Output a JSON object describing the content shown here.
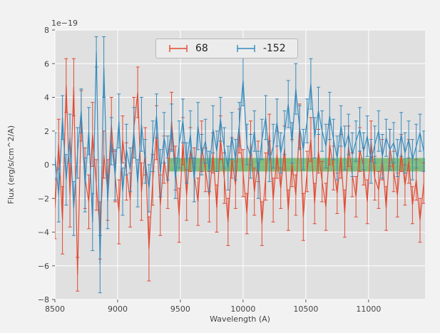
{
  "figure": {
    "offset_text": "1e−19",
    "background": "#f2f2f2",
    "axes_background": "#e0e0e0",
    "grid_color": "#ffffff",
    "tick_color": "#555555"
  },
  "legend": {
    "entries": [
      {
        "label": "68",
        "color": "#E24A33"
      },
      {
        "label": "-152",
        "color": "#348ABD"
      }
    ]
  },
  "chart_data": {
    "type": "line",
    "title": "",
    "xlabel": "Wavelength (A)",
    "ylabel": "Flux (erg/s/cm^2/A)",
    "y_scale_factor": "1e-19",
    "grid": true,
    "legend_position": "upper center",
    "xlim": [
      8500,
      11450
    ],
    "ylim": [
      -8,
      8
    ],
    "xticks": [
      8500,
      9000,
      9500,
      10000,
      10500,
      11000
    ],
    "yticks": [
      -8,
      -6,
      -4,
      -2,
      0,
      2,
      4,
      6,
      8
    ],
    "x_start": 8500,
    "x_step": 30,
    "n_points": 99,
    "band": {
      "x_start": 9400,
      "x_end": 11450,
      "y_low": -0.4,
      "y_high": 0.4,
      "color": "#33a02c",
      "opacity": 0.55
    },
    "series": [
      {
        "name": "68",
        "color": "#E24A33",
        "values": [
          -2.6,
          1.2,
          -3.3,
          4.7,
          -1.8,
          4.6,
          -6.5,
          2.9,
          -0.8,
          -2.2,
          1.8,
          -1.2,
          -3.9,
          0.6,
          -1.5,
          2.4,
          -0.7,
          -2.8,
          1.5,
          -0.4,
          -2.1,
          2.2,
          4.3,
          -1.6,
          0.8,
          -5.0,
          -0.9,
          1.9,
          -2.4,
          0.3,
          -1.1,
          2.6,
          -0.2,
          -3.0,
          1.4,
          -1.8,
          0.9,
          -0.6,
          -2.2,
          1.1,
          -0.3,
          -1.9,
          0.7,
          -2.6,
          1.6,
          -0.8,
          -3.4,
          0.4,
          -1.2,
          2.0,
          -0.5,
          -2.9,
          1.3,
          -1.6,
          0.2,
          -3.5,
          -0.7,
          1.8,
          -2.1,
          0.6,
          -1.4,
          1.0,
          -2.7,
          0.1,
          -1.8,
          2.3,
          -3.1,
          -0.4,
          1.5,
          -2.3,
          0.8,
          -1.0,
          -2.5,
          1.2,
          -0.2,
          -1.7,
          0.5,
          -2.9,
          1.1,
          -0.6,
          -1.9,
          0.9,
          -0.1,
          -2.2,
          1.4,
          -0.8,
          -1.5,
          0.3,
          -2.6,
          1.0,
          -0.4,
          -1.8,
          0.7,
          -1.2,
          0.2,
          -2.4,
          -0.9,
          -3.3,
          -1.1
        ],
        "errors": [
          1.8,
          1.5,
          2.0,
          1.6,
          1.9,
          1.7,
          1.0,
          1.5,
          1.8,
          1.6,
          1.9,
          1.5,
          1.7,
          1.4,
          1.8,
          1.6,
          1.5,
          1.9,
          1.4,
          1.7,
          1.6,
          1.8,
          1.5,
          1.7,
          1.4,
          1.9,
          1.5,
          1.6,
          1.8,
          1.4,
          1.5,
          1.7,
          1.3,
          1.6,
          1.4,
          1.5,
          1.3,
          1.6,
          1.4,
          1.5,
          1.3,
          1.5,
          1.2,
          1.4,
          1.3,
          1.5,
          1.4,
          1.2,
          1.4,
          1.3,
          1.4,
          1.2,
          1.3,
          1.4,
          1.2,
          1.3,
          1.4,
          1.2,
          1.3,
          1.4,
          1.2,
          1.3,
          1.2,
          1.4,
          1.2,
          1.3,
          1.4,
          1.2,
          1.3,
          1.2,
          1.3,
          1.2,
          1.4,
          1.2,
          1.3,
          1.2,
          1.3,
          1.4,
          1.2,
          1.3,
          1.2,
          1.3,
          1.1,
          1.3,
          1.2,
          1.3,
          1.1,
          1.2,
          1.3,
          1.1,
          1.2,
          1.3,
          1.1,
          1.2,
          1.3,
          1.1,
          1.2,
          1.3,
          1.2
        ]
      },
      {
        "name": "-152",
        "color": "#348ABD",
        "values": [
          0.5,
          -1.8,
          2.8,
          -0.9,
          1.6,
          -2.6,
          0.7,
          3.2,
          -1.2,
          2.0,
          -3.4,
          6.7,
          -5.9,
          5.8,
          -2.2,
          1.4,
          -0.6,
          2.6,
          -1.6,
          0.9,
          -0.3,
          1.9,
          -1.1,
          2.4,
          0.2,
          -1.4,
          1.1,
          2.9,
          -0.5,
          1.6,
          0.4,
          2.2,
          -0.8,
          1.2,
          2.6,
          0.1,
          1.8,
          -0.9,
          2.3,
          0.6,
          1.4,
          -0.4,
          2.1,
          0.8,
          2.7,
          1.0,
          -0.2,
          1.7,
          0.3,
          2.4,
          5.0,
          1.2,
          0.5,
          2.0,
          -0.6,
          1.5,
          2.8,
          0.2,
          1.1,
          2.5,
          0.7,
          1.9,
          3.6,
          1.3,
          4.5,
          2.2,
          0.9,
          2.6,
          4.8,
          1.6,
          3.2,
          2.0,
          1.1,
          2.9,
          1.5,
          0.4,
          2.3,
          1.0,
          1.8,
          0.6,
          1.4,
          2.1,
          0.8,
          1.7,
          0.2,
          1.2,
          2.0,
          0.5,
          1.6,
          0.9,
          1.3,
          0.4,
          1.8,
          0.7,
          1.5,
          0.3,
          1.1,
          1.9,
          0.8
        ],
        "errors": [
          1.4,
          1.6,
          1.3,
          1.5,
          1.4,
          1.6,
          1.5,
          1.3,
          1.6,
          1.4,
          1.7,
          0.9,
          1.7,
          1.8,
          1.6,
          1.4,
          1.5,
          1.6,
          1.4,
          1.5,
          1.3,
          1.5,
          1.4,
          1.6,
          1.3,
          1.4,
          1.5,
          1.3,
          1.4,
          1.5,
          1.3,
          1.4,
          1.2,
          1.4,
          1.3,
          1.2,
          1.4,
          1.3,
          1.4,
          1.2,
          1.3,
          1.2,
          1.4,
          1.2,
          1.3,
          1.2,
          1.3,
          1.4,
          1.2,
          1.3,
          1.5,
          1.2,
          1.3,
          1.2,
          1.4,
          1.2,
          1.3,
          1.2,
          1.3,
          1.4,
          1.2,
          1.3,
          1.4,
          1.2,
          1.5,
          1.3,
          1.2,
          1.3,
          1.5,
          1.2,
          1.4,
          1.2,
          1.3,
          1.4,
          1.2,
          1.3,
          1.2,
          1.3,
          1.2,
          1.3,
          1.2,
          1.3,
          1.1,
          1.2,
          1.3,
          1.1,
          1.2,
          1.3,
          1.1,
          1.2,
          1.2,
          1.1,
          1.3,
          1.2,
          1.1,
          1.2,
          1.3,
          1.1,
          1.2
        ]
      }
    ]
  }
}
